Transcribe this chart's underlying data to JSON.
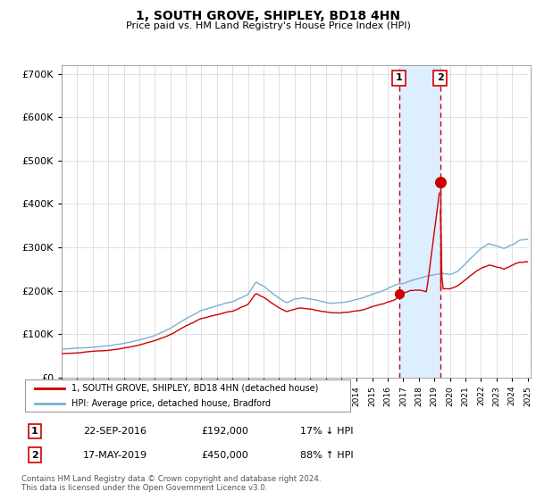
{
  "title": "1, SOUTH GROVE, SHIPLEY, BD18 4HN",
  "subtitle": "Price paid vs. HM Land Registry's House Price Index (HPI)",
  "ylabel_ticks": [
    "£0",
    "£100K",
    "£200K",
    "£300K",
    "£400K",
    "£500K",
    "£600K",
    "£700K"
  ],
  "ytick_vals": [
    0,
    100000,
    200000,
    300000,
    400000,
    500000,
    600000,
    700000
  ],
  "ylim": [
    0,
    720000
  ],
  "xlim_start": 1995.0,
  "xlim_end": 2025.2,
  "hatch_start": 2025.0,
  "shade_x1": 2016.72,
  "shade_x2": 2019.37,
  "point1_x": 2016.72,
  "point1_y": 192000,
  "point2_x": 2019.37,
  "point2_y": 450000,
  "red_color": "#cc0000",
  "blue_color": "#7bafd4",
  "shade_color": "#ddeeff",
  "legend_label_red": "1, SOUTH GROVE, SHIPLEY, BD18 4HN (detached house)",
  "legend_label_blue": "HPI: Average price, detached house, Bradford",
  "table_row1_num": "1",
  "table_row1_date": "22-SEP-2016",
  "table_row1_price": "£192,000",
  "table_row1_hpi": "17% ↓ HPI",
  "table_row2_num": "2",
  "table_row2_date": "17-MAY-2019",
  "table_row2_price": "£450,000",
  "table_row2_hpi": "88% ↑ HPI",
  "footnote": "Contains HM Land Registry data © Crown copyright and database right 2024.\nThis data is licensed under the Open Government Licence v3.0."
}
